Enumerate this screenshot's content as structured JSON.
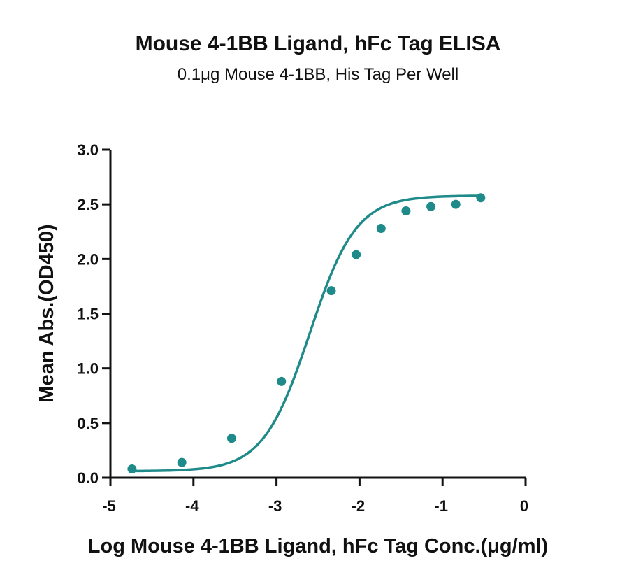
{
  "chart_data": {
    "type": "scatter",
    "title": "Mouse 4-1BB Ligand, hFc Tag ELISA",
    "subtitle": "0.1μg Mouse 4-1BB, His Tag Per Well",
    "xlabel": "Log Mouse 4-1BB Ligand, hFc Tag Conc.(μg/ml)",
    "ylabel": "Mean Abs.(OD450)",
    "xlim": [
      -5,
      0
    ],
    "ylim": [
      0,
      3.0
    ],
    "x_ticks": [
      "-5",
      "-4",
      "-3",
      "-2",
      "-1",
      "0"
    ],
    "y_ticks": [
      "0.0",
      "0.5",
      "1.0",
      "1.5",
      "2.0",
      "2.5",
      "3.0"
    ],
    "grid": false,
    "series": [
      {
        "x": [
          -4.74,
          -4.14,
          -3.54,
          -2.94,
          -2.34,
          -2.04,
          -1.74,
          -1.44,
          -1.14,
          -0.84,
          -0.54
        ],
        "y": [
          0.08,
          0.14,
          0.36,
          0.88,
          1.71,
          2.04,
          2.28,
          2.44,
          2.48,
          2.5,
          2.56
        ],
        "fit": "4PL sigmoid",
        "color": "#1f8a8a"
      }
    ]
  }
}
